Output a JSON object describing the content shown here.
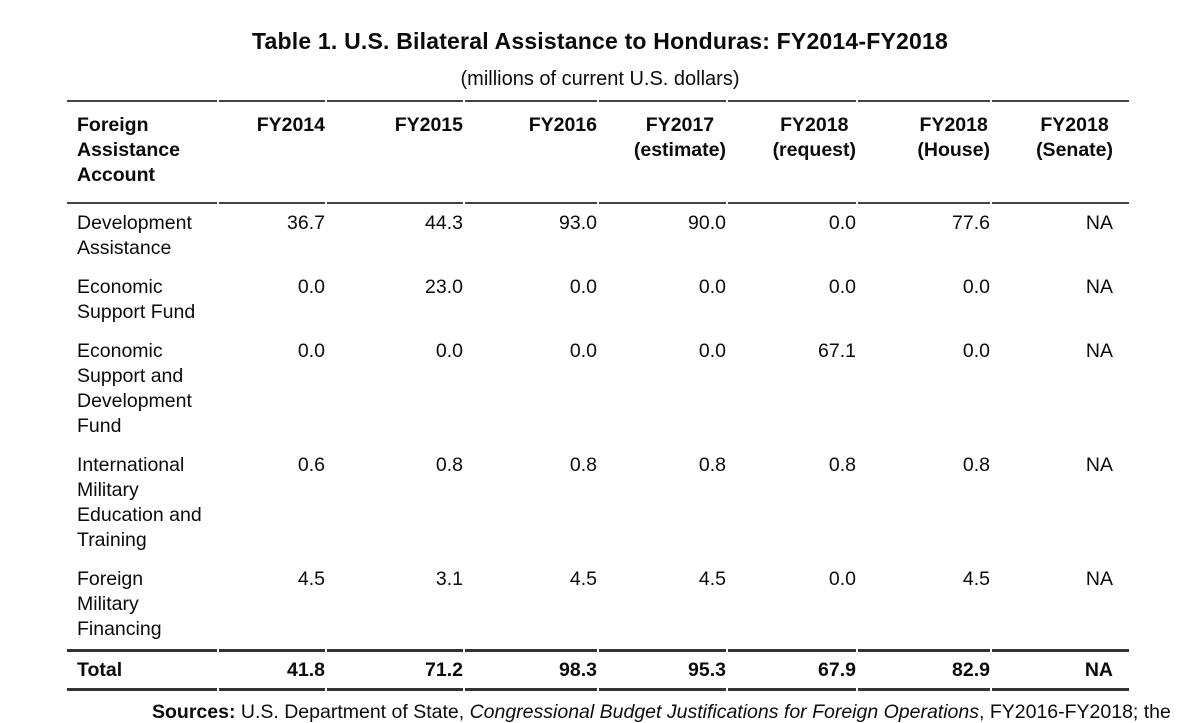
{
  "table": {
    "title": "Table 1. U.S. Bilateral Assistance to Honduras: FY2014-FY2018",
    "subtitle": "(millions of current U.S. dollars)",
    "stub_header": "Foreign\nAssistance\nAccount",
    "year_headers": [
      "FY2014",
      "FY2015",
      "FY2016",
      "FY2017\n(estimate)",
      "FY2018\n(request)",
      "FY2018\n(House)",
      "FY2018\n(Senate)"
    ],
    "rows": [
      {
        "account": "Development\nAssistance",
        "values": [
          "36.7",
          "44.3",
          "93.0",
          "90.0",
          "0.0",
          "77.6",
          "NA"
        ]
      },
      {
        "account": "Economic\nSupport Fund",
        "values": [
          "0.0",
          "23.0",
          "0.0",
          "0.0",
          "0.0",
          "0.0",
          "NA"
        ]
      },
      {
        "account": "Economic\nSupport and\nDevelopment\nFund",
        "values": [
          "0.0",
          "0.0",
          "0.0",
          "0.0",
          "67.1",
          "0.0",
          "NA"
        ]
      },
      {
        "account": "International\nMilitary\nEducation and\nTraining",
        "values": [
          "0.6",
          "0.8",
          "0.8",
          "0.8",
          "0.8",
          "0.8",
          "NA"
        ]
      },
      {
        "account": "Foreign\nMilitary\nFinancing",
        "values": [
          "4.5",
          "3.1",
          "4.5",
          "4.5",
          "0.0",
          "4.5",
          "NA"
        ]
      }
    ],
    "total": {
      "label": "Total",
      "values": [
        "41.8",
        "71.2",
        "98.3",
        "95.3",
        "67.9",
        "82.9",
        "NA"
      ]
    },
    "sources": {
      "label": "Sources:",
      "before_italic": " U.S. Department of State, ",
      "italic": "Congressional Budget Justifications for Foreign Operations",
      "after_italic": ", FY2016-FY2018; the"
    },
    "colors": {
      "text": "#0b0b0b",
      "rule_light": "#434343",
      "rule_heavy": "#333333",
      "background": "#ffffff"
    }
  }
}
